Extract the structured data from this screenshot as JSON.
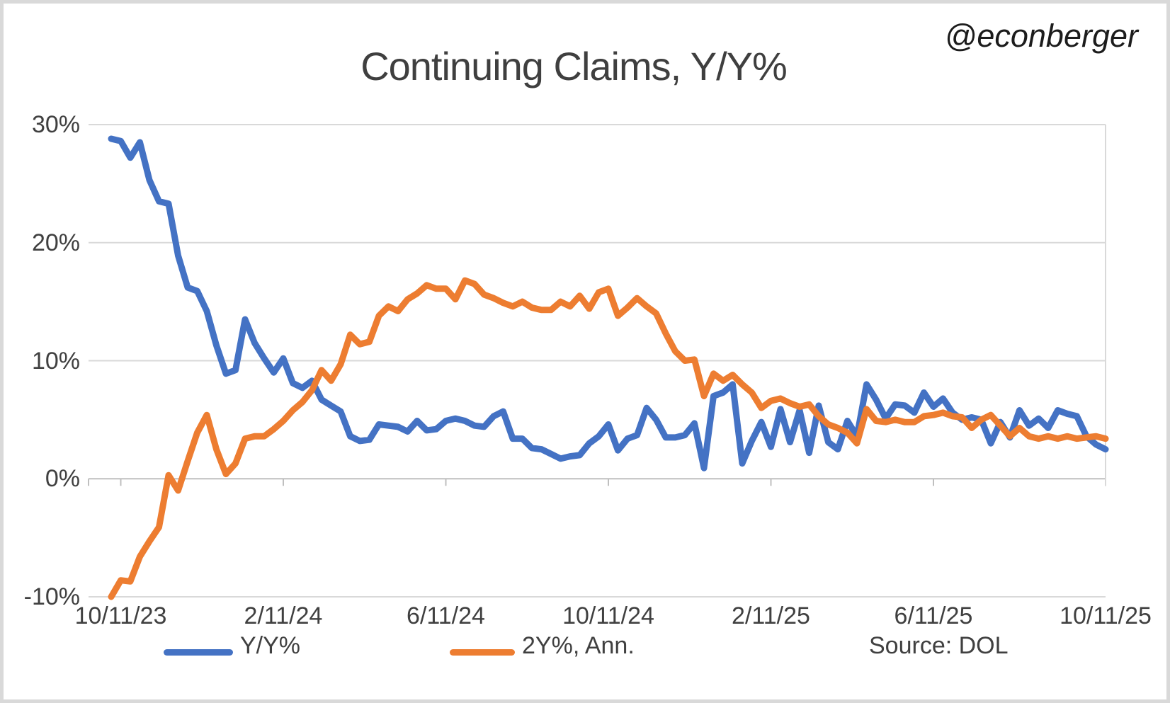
{
  "header": {
    "title": "Continuing Claims, Y/Y%",
    "watermark": "@econberger"
  },
  "chart_data": {
    "type": "line",
    "title": "Continuing Claims, Y/Y%",
    "xlabel": "",
    "ylabel": "",
    "x_frequency": "weekly",
    "x_tick_labels": [
      "10/11/23",
      "2/11/24",
      "6/11/24",
      "10/11/24",
      "2/11/25",
      "6/11/25",
      "10/11/25"
    ],
    "x_tick_indices": [
      1,
      18,
      35,
      52,
      69,
      86,
      104
    ],
    "y_ticks": [
      {
        "label": "30%",
        "value": 30
      },
      {
        "label": "20%",
        "value": 20
      },
      {
        "label": "10%",
        "value": 10
      },
      {
        "label": "0%",
        "value": 0
      },
      {
        "label": "-10%",
        "value": -10
      }
    ],
    "ylim": [
      -10,
      30
    ],
    "grid": "horizontal",
    "legend_position": "bottom",
    "source": "Source: DOL",
    "series": [
      {
        "name": "Y/Y%",
        "color": "#4472C4",
        "values": [
          28.8,
          28.6,
          27.2,
          28.5,
          25.3,
          23.5,
          23.3,
          18.9,
          16.2,
          15.9,
          14.2,
          11.3,
          8.9,
          9.2,
          13.5,
          11.5,
          10.2,
          9.0,
          10.2,
          8.1,
          7.7,
          8.3,
          6.7,
          6.2,
          5.7,
          3.6,
          3.2,
          3.3,
          4.6,
          4.5,
          4.4,
          4.0,
          4.9,
          4.1,
          4.2,
          4.9,
          5.1,
          4.9,
          4.5,
          4.4,
          5.3,
          5.7,
          3.4,
          3.4,
          2.6,
          2.5,
          2.1,
          1.7,
          1.9,
          2.0,
          3.0,
          3.6,
          4.6,
          2.4,
          3.4,
          3.7,
          6.0,
          5.0,
          3.5,
          3.5,
          3.7,
          4.7,
          0.9,
          7.0,
          7.3,
          8.0,
          1.3,
          3.2,
          4.8,
          2.7,
          5.9,
          3.1,
          5.8,
          2.2,
          6.2,
          3.1,
          2.5,
          4.9,
          3.6,
          8.0,
          6.7,
          5.1,
          6.3,
          6.2,
          5.6,
          7.3,
          6.1,
          6.8,
          5.6,
          5.0,
          5.2,
          5.0,
          3.0,
          4.8,
          3.5,
          5.8,
          4.5,
          5.1,
          4.3,
          5.8,
          5.5,
          5.3,
          3.6,
          2.9,
          2.5
        ]
      },
      {
        "name": "2Y%, Ann.",
        "color": "#ED7D31",
        "values": [
          -10.0,
          -8.6,
          -8.7,
          -6.6,
          -5.3,
          -4.1,
          0.3,
          -1.0,
          1.5,
          3.9,
          5.4,
          2.5,
          0.4,
          1.3,
          3.4,
          3.6,
          3.6,
          4.2,
          4.9,
          5.8,
          6.5,
          7.5,
          9.2,
          8.3,
          9.7,
          12.2,
          11.4,
          11.6,
          13.8,
          14.6,
          14.2,
          15.2,
          15.7,
          16.4,
          16.1,
          16.1,
          15.2,
          16.8,
          16.5,
          15.6,
          15.3,
          14.9,
          14.6,
          15.0,
          14.5,
          14.3,
          14.3,
          15.0,
          14.6,
          15.5,
          14.4,
          15.8,
          16.1,
          13.8,
          14.5,
          15.3,
          14.6,
          14.0,
          12.3,
          10.8,
          10.0,
          10.1,
          7.0,
          8.9,
          8.3,
          8.8,
          8.0,
          7.3,
          6.0,
          6.6,
          6.8,
          6.4,
          6.1,
          6.3,
          5.3,
          4.6,
          4.3,
          3.9,
          3.0,
          5.9,
          4.9,
          4.8,
          5.0,
          4.8,
          4.8,
          5.3,
          5.4,
          5.6,
          5.3,
          5.2,
          4.3,
          5.0,
          5.4,
          4.5,
          3.6,
          4.3,
          3.6,
          3.4,
          3.6,
          3.4,
          3.6,
          3.4,
          3.5,
          3.6,
          3.4
        ]
      }
    ]
  },
  "colors": {
    "blue": "#4472C4",
    "orange": "#ED7D31",
    "gridline": "#D9D9D9",
    "axis": "#BFBFBF",
    "text": "#404040",
    "frame": "#D9D9D9"
  }
}
